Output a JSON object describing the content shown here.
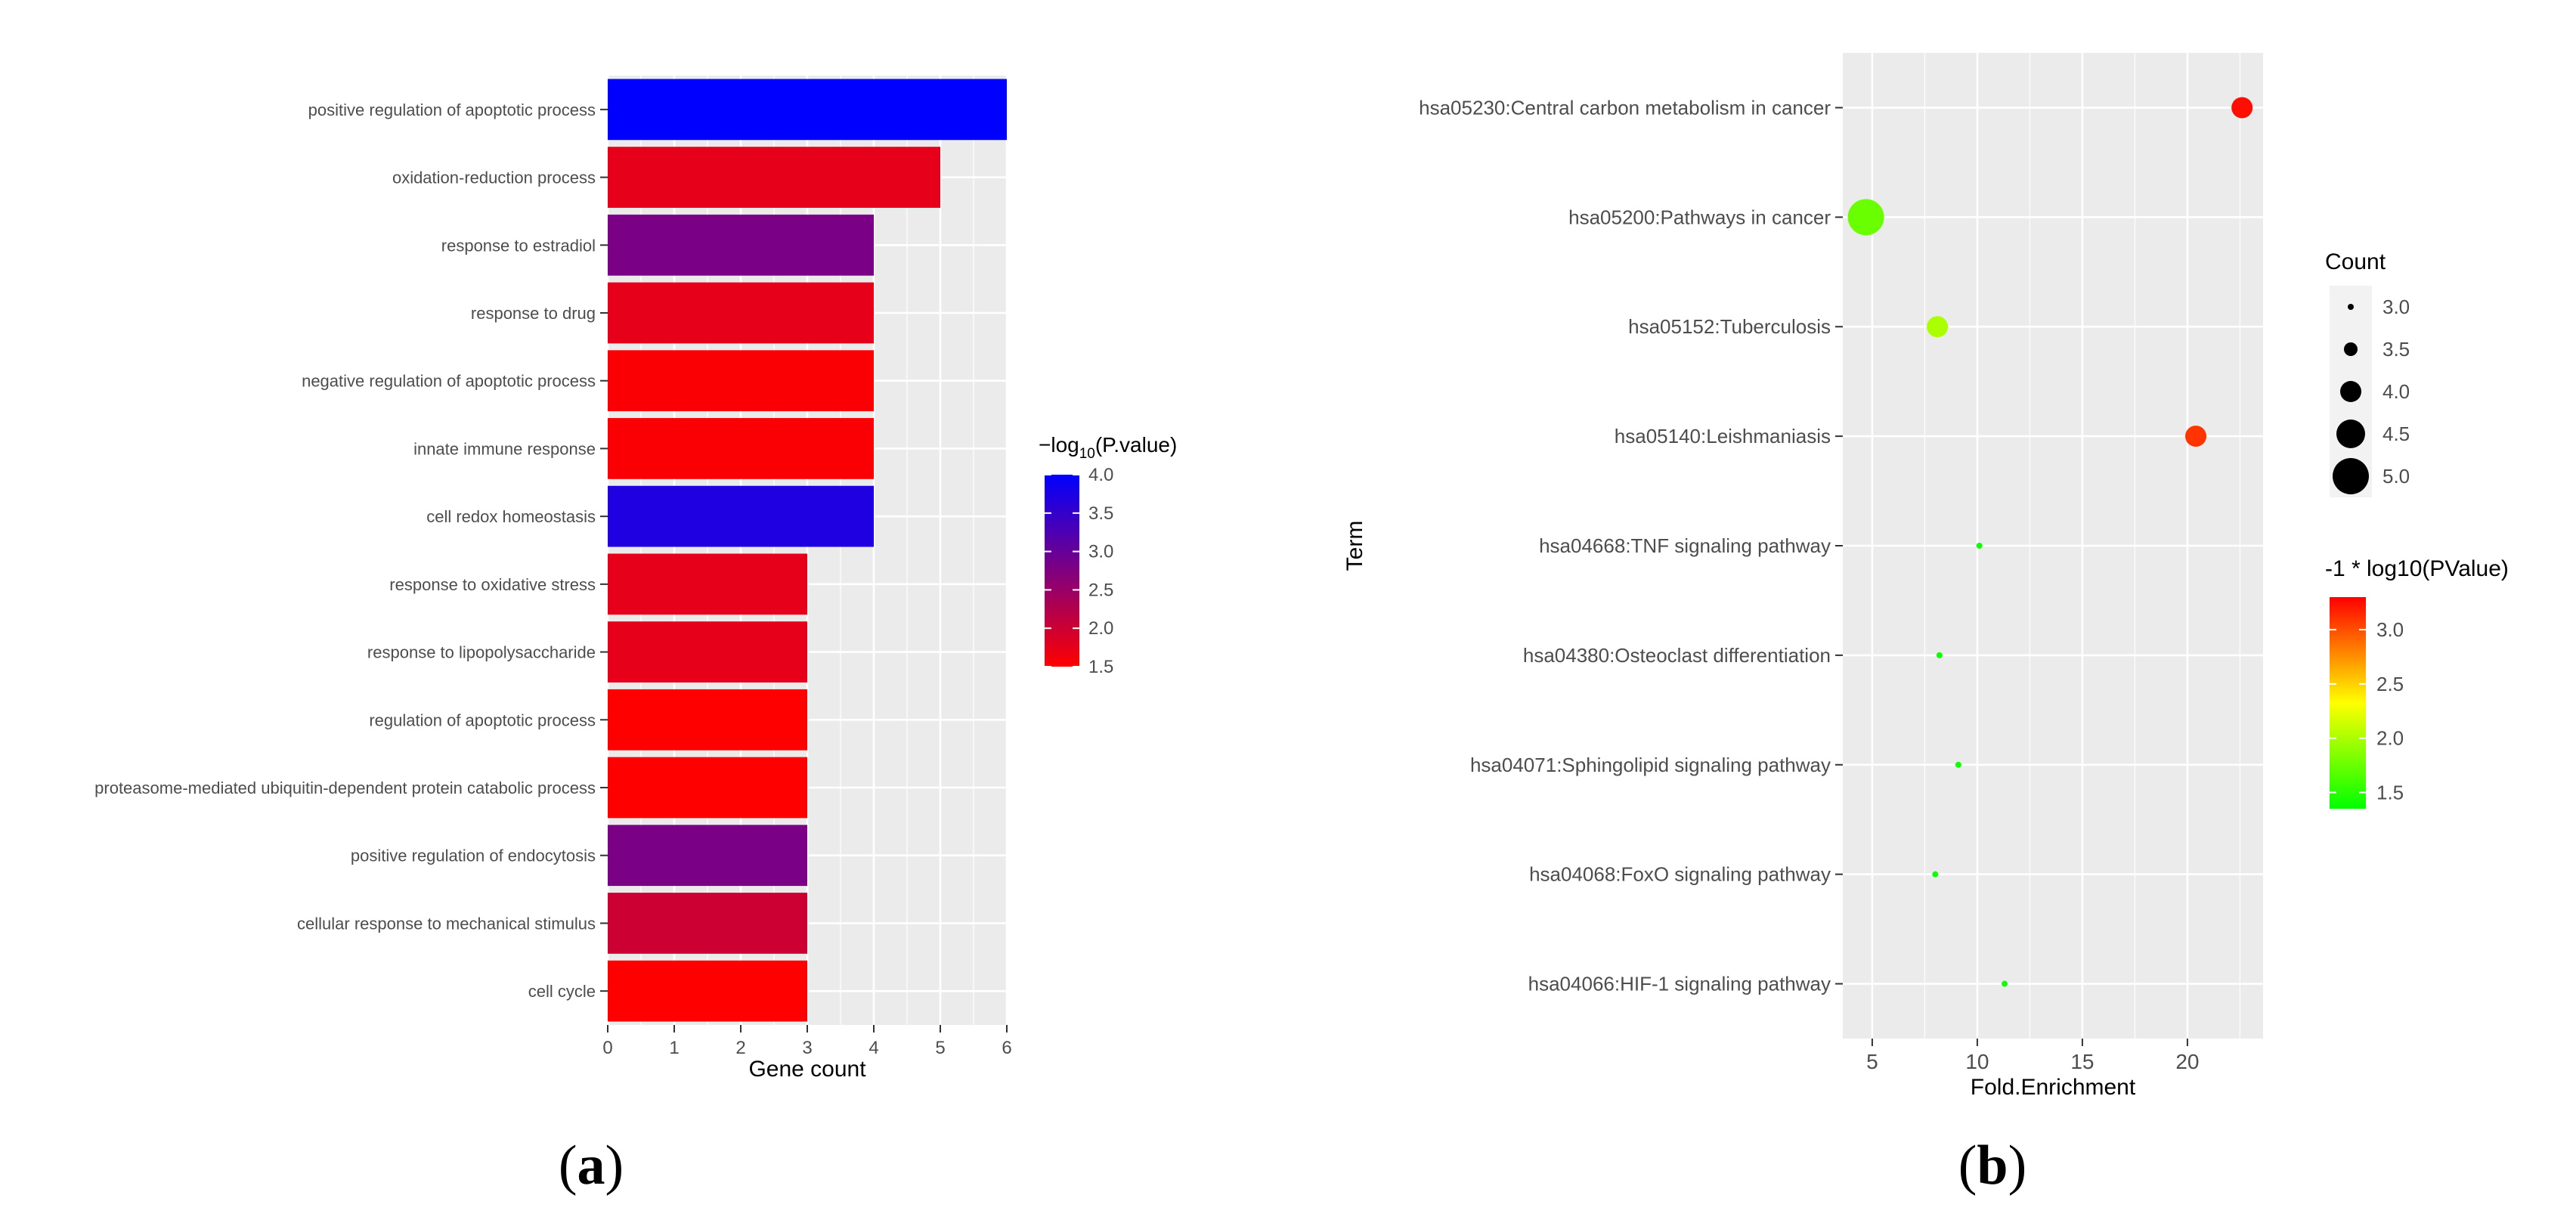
{
  "panels": {
    "a": "a",
    "b": "b"
  },
  "chart_data": [
    {
      "type": "bar",
      "orientation": "horizontal",
      "categories": [
        "positive regulation of apoptotic process",
        "oxidation-reduction process",
        "response to estradiol",
        "response to drug",
        "negative regulation of apoptotic process",
        "innate immune response",
        "cell redox homeostasis",
        "response to oxidative stress",
        "response to lipopolysaccharide",
        "regulation of apoptotic process",
        "proteasome-mediated ubiquitin-dependent protein catabolic process",
        "positive regulation of endocytosis",
        "cellular response to mechanical stimulus",
        "cell cycle"
      ],
      "values": [
        6,
        5,
        4,
        4,
        4,
        4,
        4,
        3,
        3,
        3,
        3,
        3,
        3,
        3
      ],
      "color_values": [
        4.1,
        1.75,
        2.8,
        1.75,
        1.55,
        1.55,
        3.7,
        1.75,
        1.75,
        1.5,
        1.5,
        2.8,
        2.0,
        1.45
      ],
      "xlabel": "Gene count",
      "xlim": [
        0,
        6
      ],
      "xticks": [
        0,
        1,
        2,
        3,
        4,
        5,
        6
      ],
      "legend": {
        "title_prefix": "−log",
        "title_sub": "10",
        "title_suffix": "(P.value)",
        "ticks": [
          "4.0",
          "3.5",
          "3.0",
          "2.5",
          "2.0",
          "1.5"
        ],
        "range": [
          1.5,
          4.0
        ],
        "colors": {
          "low": "#ff0000",
          "high": "#0000ff"
        },
        "placement": "right"
      },
      "grid": true
    },
    {
      "type": "scatter",
      "categories": [
        "hsa05230:Central carbon metabolism in cancer",
        "hsa05200:Pathways in cancer",
        "hsa05152:Tuberculosis",
        "hsa05140:Leishmaniasis",
        "hsa04668:TNF signaling pathway",
        "hsa04380:Osteoclast differentiation",
        "hsa04071:Sphingolipid signaling pathway",
        "hsa04068:FoxO signaling pathway",
        "hsa04066:HIF-1 signaling pathway"
      ],
      "x": [
        22.6,
        4.7,
        8.1,
        20.4,
        10.1,
        8.2,
        9.1,
        8.0,
        11.3
      ],
      "count": [
        4,
        5,
        4,
        4,
        3,
        3,
        3,
        3,
        3
      ],
      "color_values": [
        3.25,
        1.75,
        2.0,
        3.1,
        1.4,
        1.4,
        1.4,
        1.4,
        1.4
      ],
      "xlabel": "Fold.Enrichment",
      "ylabel": "Term",
      "xlim": [
        3.6,
        23.6
      ],
      "xticks": [
        5,
        10,
        15,
        20
      ],
      "size_legend": {
        "title": "Count",
        "ticks": [
          "3.0",
          "3.5",
          "4.0",
          "4.5",
          "5.0"
        ],
        "values": [
          3.0,
          3.5,
          4.0,
          4.5,
          5.0
        ]
      },
      "color_legend": {
        "title": "-1 * log10(PValue)",
        "ticks": [
          "3.0",
          "2.5",
          "2.0",
          "1.5"
        ],
        "range": [
          1.35,
          3.3
        ],
        "colors": {
          "low": "#00ff00",
          "high": "#ff0000"
        }
      },
      "grid": true
    }
  ]
}
